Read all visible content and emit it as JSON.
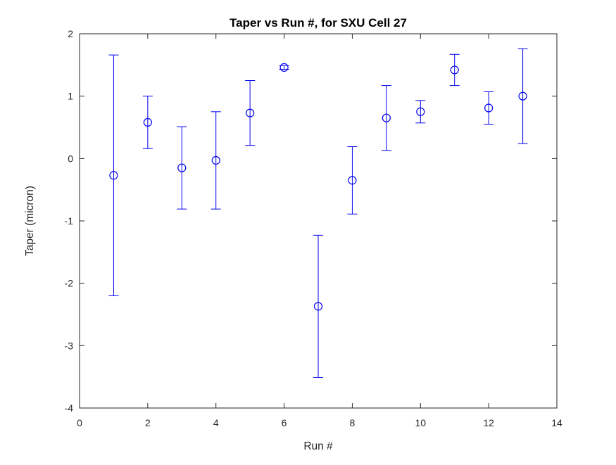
{
  "figure": {
    "background": "#ffffff"
  },
  "chart_data": {
    "type": "scatter",
    "subtype": "errorbar",
    "title": "Taper vs Run #, for SXU Cell 27",
    "xlabel": "Run #",
    "ylabel": "Taper (micron)",
    "xlim": [
      0,
      14
    ],
    "ylim": [
      -4,
      2
    ],
    "xticks": [
      0,
      2,
      4,
      6,
      8,
      10,
      12,
      14
    ],
    "yticks": [
      -4,
      -3,
      -2,
      -1,
      0,
      1,
      2
    ],
    "grid": false,
    "legend": "none",
    "marker": "open-circle",
    "color": "#0000EE",
    "axis_color": "#262626",
    "series": [
      {
        "name": "Taper",
        "x": [
          1,
          2,
          3,
          4,
          5,
          6,
          7,
          8,
          9,
          10,
          11,
          12,
          13
        ],
        "y": [
          -0.27,
          0.58,
          -0.15,
          -0.03,
          0.73,
          1.46,
          -2.37,
          -0.35,
          0.65,
          0.75,
          1.42,
          0.81,
          1.0
        ],
        "yerr": [
          1.93,
          0.42,
          0.66,
          0.78,
          0.52,
          0.03,
          1.14,
          0.54,
          0.52,
          0.18,
          0.25,
          0.26,
          0.76
        ]
      }
    ]
  }
}
